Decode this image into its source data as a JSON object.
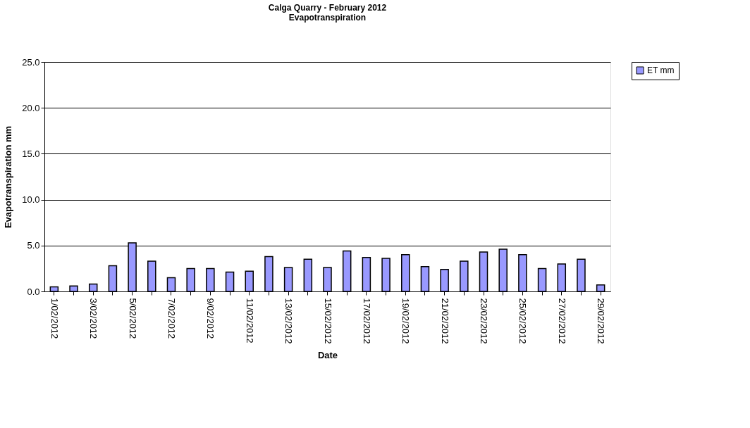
{
  "chart_data": {
    "type": "bar",
    "title": "Calga Quarry - February 2012",
    "subtitle": "Evapotranspiration",
    "xlabel": "Date",
    "ylabel": "Evapotranspiration mm",
    "categories": [
      "1/02/2012",
      null,
      "3/02/2012",
      null,
      "5/02/2012",
      null,
      "7/02/2012",
      null,
      "9/02/2012",
      null,
      "11/02/2012",
      null,
      "13/02/2012",
      null,
      "15/02/2012",
      null,
      "17/02/2012",
      null,
      "19/02/2012",
      null,
      "21/02/2012",
      null,
      "23/02/2012",
      null,
      "25/02/2012",
      null,
      "27/02/2012",
      null,
      "29/02/2012"
    ],
    "series": [
      {
        "name": "ET mm",
        "color": "#9999ff",
        "values": [
          0.5,
          0.6,
          0.8,
          2.8,
          5.3,
          3.3,
          1.5,
          2.5,
          2.5,
          2.1,
          2.2,
          3.8,
          2.6,
          3.5,
          2.6,
          4.4,
          3.7,
          3.6,
          4.0,
          2.7,
          2.4,
          3.3,
          4.3,
          4.6,
          4.0,
          2.5,
          3.0,
          3.5,
          0.7
        ]
      }
    ],
    "ylim": [
      0,
      25
    ],
    "yticks": [
      {
        "value": 0,
        "label": "0.0"
      },
      {
        "value": 5,
        "label": "5.0"
      },
      {
        "value": 10,
        "label": "10.0"
      },
      {
        "value": 15,
        "label": "15.0"
      },
      {
        "value": 20,
        "label": "20.0"
      },
      {
        "value": 25,
        "label": "25.0"
      }
    ],
    "grid": "y",
    "legend": "right"
  }
}
